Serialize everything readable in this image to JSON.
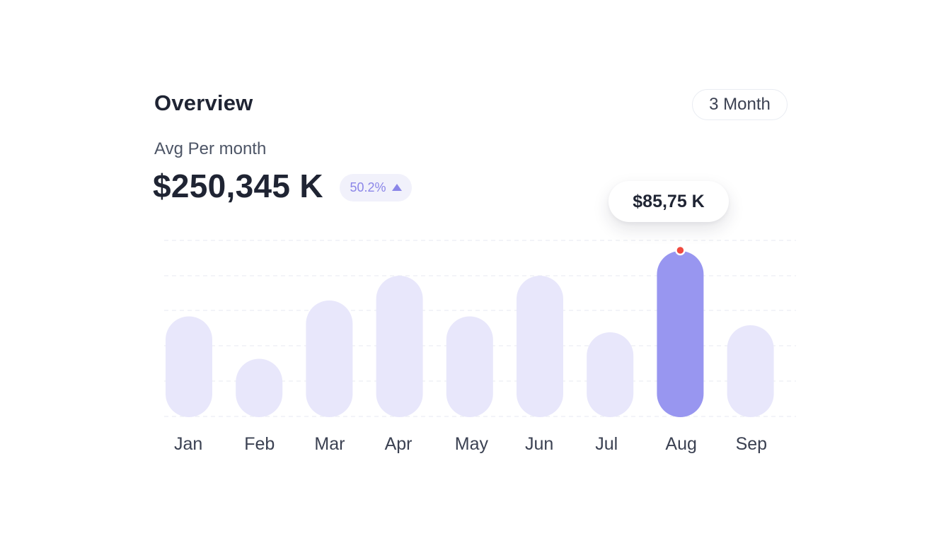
{
  "header": {
    "title": "Overview",
    "period_button": "3 Month"
  },
  "summary": {
    "label": "Avg Per month",
    "value": "$250,345 K",
    "change": "50.2%",
    "change_direction": "up"
  },
  "tooltip": {
    "value": "$85,75 K"
  },
  "colors": {
    "bar": "#e8e7fb",
    "bar_highlight": "#9896f0",
    "marker": "#f04a3f",
    "accent": "#8b86e8"
  },
  "chart_data": {
    "type": "bar",
    "categories": [
      "Jan",
      "Feb",
      "Mar",
      "Apr",
      "May",
      "Jun",
      "Jul",
      "Aug",
      "Sep"
    ],
    "values": [
      57,
      33,
      66,
      80,
      57,
      80,
      48,
      94,
      52
    ],
    "ylim": [
      0,
      100
    ],
    "highlighted": "Aug",
    "grid": true,
    "grid_style": "dashed horizontal",
    "legend": "none"
  }
}
